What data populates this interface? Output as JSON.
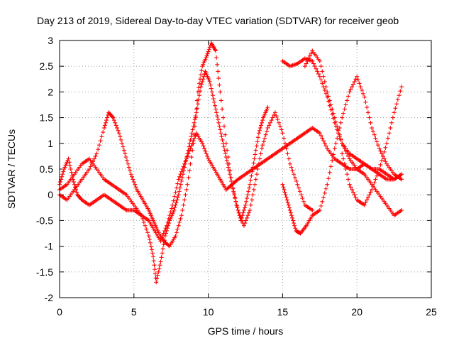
{
  "chart_data": {
    "type": "scatter",
    "title": "Day 213 of 2019, Sidereal Day-to-day VTEC variation (SDTVAR) for receiver geob",
    "xlabel": "GPS time / hours",
    "ylabel": "SDTVAR / TECUs",
    "xlim": [
      0,
      25
    ],
    "ylim": [
      -2,
      3
    ],
    "xticks": [
      "0",
      "5",
      "10",
      "15",
      "20",
      "25"
    ],
    "yticks": [
      "-2",
      "-1.5",
      "-1",
      "-0.5",
      "0",
      "0.5",
      "1",
      "1.5",
      "2",
      "2.5",
      "3"
    ],
    "grid": true,
    "marker": "+",
    "color": "#ff0000",
    "series": [
      {
        "name": "s1",
        "x": [
          0,
          0.3,
          0.6,
          0.9,
          1.2,
          1.5,
          2,
          2.5,
          3,
          3.5,
          4,
          4.5,
          5,
          5.5,
          6,
          6.4,
          6.8,
          7.2,
          7.6,
          8,
          8.4,
          8.8,
          9.2,
          9.6,
          10,
          10.4,
          10.8,
          11.2,
          11.6,
          12,
          12.5,
          13,
          13.5,
          14,
          14.5,
          15,
          15.5,
          16,
          16.5,
          17,
          17.5,
          18,
          18.5,
          19,
          19.5,
          20,
          20.5,
          21,
          21.5,
          22,
          22.5,
          23
        ],
        "y": [
          0.2,
          0.5,
          0.7,
          0.3,
          0,
          -0.1,
          -0.2,
          -0.1,
          0,
          -0.1,
          -0.2,
          -0.3,
          -0.3,
          -0.4,
          -0.5,
          -0.7,
          -0.9,
          -0.6,
          -0.2,
          0.3,
          0.6,
          0.9,
          1.2,
          1.0,
          0.7,
          0.5,
          0.3,
          0.1,
          0.2,
          0.3,
          0.4,
          0.5,
          0.6,
          0.7,
          0.8,
          0.9,
          1.0,
          1.1,
          1.2,
          1.3,
          1.2,
          0.9,
          0.7,
          0.6,
          0.5,
          0.5,
          0.6,
          0.5,
          0.4,
          0.3,
          0.3,
          0.4
        ]
      },
      {
        "name": "s2",
        "x": [
          0,
          0.5,
          1,
          1.5,
          2,
          2.5,
          3,
          3.3,
          3.6,
          4,
          4.4,
          4.8,
          5.2,
          5.6,
          6,
          6.3,
          6.6,
          7,
          7.4,
          7.8,
          8.2,
          8.6,
          9,
          9.3,
          9.6,
          9.9,
          10.2,
          10.5,
          10.8,
          11.2,
          11.6,
          12,
          12.4,
          12.8,
          13.2,
          13.6,
          14,
          14.5,
          15,
          15.5,
          16,
          16.5,
          17
        ],
        "y": [
          0,
          -0.1,
          0.1,
          0.3,
          0.5,
          0.8,
          1.3,
          1.6,
          1.5,
          1.2,
          0.8,
          0.4,
          0.1,
          -0.1,
          -0.3,
          -0.5,
          -0.7,
          -0.9,
          -1.0,
          -0.8,
          -0.4,
          0.2,
          1.0,
          2.0,
          2.5,
          2.7,
          2.95,
          2.8,
          2.0,
          1.0,
          0.2,
          -0.3,
          -0.6,
          -0.3,
          0.3,
          0.9,
          1.3,
          1.6,
          1.2,
          0.6,
          0.2,
          -0.2,
          -0.3
        ]
      },
      {
        "name": "s3",
        "x": [
          0,
          0.5,
          1,
          1.5,
          2,
          2.5,
          3,
          3.5,
          4,
          4.5,
          5,
          5.5,
          6,
          6.3,
          6.5,
          6.8,
          7.1,
          7.4,
          7.7,
          8,
          8.3,
          8.6,
          8.9,
          9.2,
          9.5,
          9.8,
          10.1,
          10.4,
          10.7,
          11,
          11.3,
          11.6,
          11.9,
          12.2,
          12.5,
          12.8,
          13.1,
          13.4,
          13.7,
          14
        ],
        "y": [
          0.1,
          0.2,
          0.4,
          0.6,
          0.7,
          0.5,
          0.3,
          0.2,
          0.1,
          0.0,
          -0.2,
          -0.4,
          -0.8,
          -1.2,
          -1.7,
          -1.3,
          -0.8,
          -0.5,
          -0.3,
          0.0,
          0.4,
          0.8,
          1.2,
          1.6,
          2.1,
          2.4,
          2.2,
          1.8,
          1.4,
          1.0,
          0.6,
          0.2,
          -0.2,
          -0.5,
          -0.2,
          0.2,
          0.7,
          1.2,
          1.5,
          1.7
        ]
      },
      {
        "name": "s4",
        "x": [
          15,
          15.5,
          16,
          16.5,
          17,
          17.5,
          18,
          18.5,
          19,
          19.5,
          20,
          20.5,
          21,
          21.5,
          22,
          22.5,
          23
        ],
        "y": [
          2.6,
          2.5,
          2.55,
          2.65,
          2.6,
          2.3,
          1.9,
          1.4,
          1.0,
          0.7,
          0.5,
          0.4,
          0.2,
          0.0,
          -0.2,
          -0.4,
          -0.3
        ]
      },
      {
        "name": "s5",
        "x": [
          15,
          15.3,
          15.6,
          15.9,
          16.2,
          16.6,
          17,
          17.5,
          18,
          18.5,
          19,
          19.5,
          20,
          20.5,
          21,
          21.5,
          22,
          22.5,
          23
        ],
        "y": [
          0.2,
          -0.1,
          -0.4,
          -0.7,
          -0.75,
          -0.6,
          -0.4,
          -0.3,
          0.2,
          0.9,
          1.5,
          2.0,
          2.3,
          1.9,
          1.3,
          0.9,
          0.6,
          0.4,
          0.3
        ]
      },
      {
        "name": "s6",
        "x": [
          19,
          19.5,
          20,
          20.5,
          21,
          21.5,
          22,
          22.5,
          23
        ],
        "y": [
          0.8,
          0.2,
          -0.1,
          -0.2,
          0.1,
          0.5,
          1.0,
          1.6,
          2.1
        ]
      },
      {
        "name": "s7",
        "x": [
          16.5,
          17,
          17.5,
          18,
          18.5,
          19,
          19.5,
          20,
          20.5,
          21,
          21.5,
          22,
          22.5,
          23
        ],
        "y": [
          2.5,
          2.8,
          2.6,
          2.0,
          1.5,
          1.0,
          0.8,
          0.7,
          0.6,
          0.5,
          0.5,
          0.4,
          0.3,
          0.4
        ]
      }
    ]
  }
}
